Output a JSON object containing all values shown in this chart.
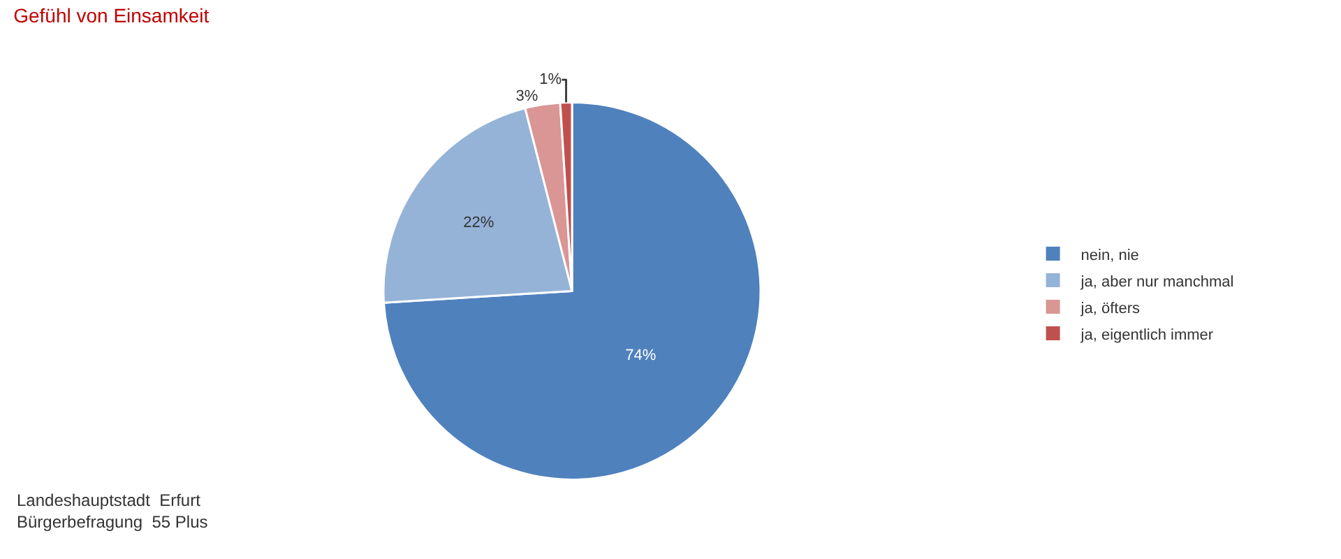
{
  "chart_data": {
    "type": "pie",
    "title": "Gefühl von Einsamkeit",
    "categories": [
      "nein, nie",
      "ja, aber nur manchmal",
      "ja, öfters",
      "ja, eigentlich immer"
    ],
    "values": [
      74,
      22,
      3,
      1
    ],
    "colors": [
      "#4f81bd",
      "#95b3d7",
      "#d99694",
      "#c0504d"
    ],
    "value_labels": [
      "74%",
      "22%",
      "3%",
      "1%"
    ],
    "legend": "right",
    "annotations": [
      "Landeshauptstadt  Erfurt\nBürgerbefragung  55 Plus"
    ]
  }
}
